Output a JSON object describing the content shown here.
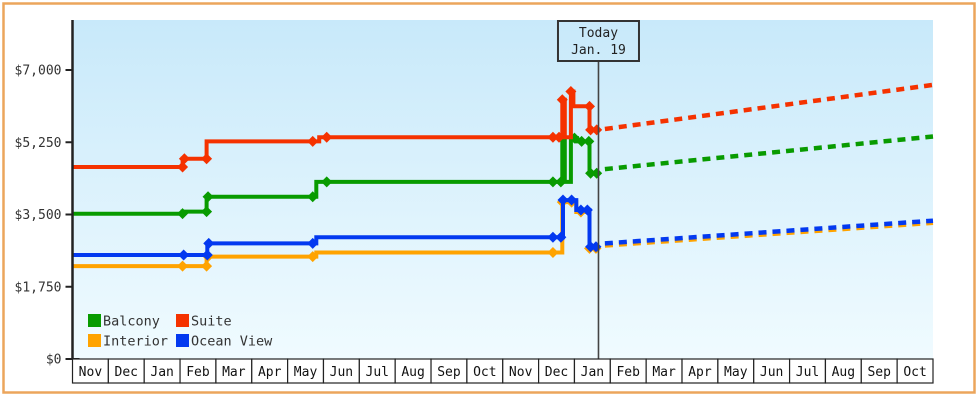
{
  "frame": {
    "border_color": "#eca55c",
    "background_color": "#ffffff"
  },
  "chart_data": {
    "type": "line",
    "title": "",
    "xlabel": "",
    "ylabel": "",
    "ylim": [
      0,
      7000
    ],
    "grid": false,
    "plot_background_top": "#c8e9fa",
    "plot_background_bottom": "#f0fbff",
    "axis_color": "#222222",
    "tick_label_color": "#333333",
    "y_ticks": [
      {
        "label": "$0",
        "value": 0
      },
      {
        "label": "$1,750",
        "value": 1750
      },
      {
        "label": "$3,500",
        "value": 3500
      },
      {
        "label": "$5,250",
        "value": 5250
      },
      {
        "label": "$7,000",
        "value": 7000
      }
    ],
    "x_months": [
      "Nov",
      "Dec",
      "Jan",
      "Feb",
      "Mar",
      "Apr",
      "May",
      "Jun",
      "Jul",
      "Aug",
      "Sep",
      "Oct",
      "Nov",
      "Dec",
      "Jan",
      "Feb",
      "Mar",
      "Apr",
      "May",
      "Jun",
      "Jul",
      "Aug",
      "Sep",
      "Oct"
    ],
    "today": {
      "label_line1": "Today",
      "label_line2": "Jan. 19",
      "month_pos": 14.67,
      "line_color": "#444444",
      "box_border_color": "#333333",
      "text_color": "#222222"
    },
    "legend_position": "bottom-left",
    "legend": [
      {
        "label": "Balcony",
        "color": "#089b00"
      },
      {
        "label": "Suite",
        "color": "#f53200"
      },
      {
        "label": "Interior",
        "color": "#ffa300"
      },
      {
        "label": "Ocean View",
        "color": "#0339f0"
      }
    ],
    "series": [
      {
        "name": "Interior",
        "color": "#ffa300",
        "line": [
          [
            0,
            2250
          ],
          [
            3.07,
            2250
          ],
          [
            3.74,
            2250
          ],
          [
            3.74,
            2480
          ],
          [
            6.7,
            2480
          ],
          [
            6.8,
            2480
          ],
          [
            6.8,
            2580
          ],
          [
            13.4,
            2580
          ],
          [
            13.66,
            2580
          ],
          [
            13.66,
            3800
          ],
          [
            14.05,
            3800
          ],
          [
            14.05,
            3560
          ],
          [
            14.42,
            3560
          ],
          [
            14.42,
            2680
          ],
          [
            14.67,
            2680
          ]
        ],
        "dots": [
          [
            3.07,
            2250
          ],
          [
            3.74,
            2250
          ],
          [
            3.78,
            2480
          ],
          [
            6.7,
            2480
          ],
          [
            13.4,
            2580
          ],
          [
            13.66,
            3800
          ],
          [
            13.92,
            3800
          ],
          [
            14.18,
            3560
          ],
          [
            14.42,
            2680
          ],
          [
            14.6,
            2680
          ]
        ],
        "forecast": [
          [
            14.85,
            2750
          ],
          [
            24,
            3300
          ]
        ]
      },
      {
        "name": "Ocean View",
        "color": "#0339f0",
        "line": [
          [
            0,
            2520
          ],
          [
            3.1,
            2520
          ],
          [
            3.76,
            2520
          ],
          [
            3.76,
            2800
          ],
          [
            6.7,
            2800
          ],
          [
            6.8,
            2800
          ],
          [
            6.8,
            2950
          ],
          [
            13.4,
            2950
          ],
          [
            13.68,
            2950
          ],
          [
            13.68,
            3850
          ],
          [
            14.05,
            3850
          ],
          [
            14.05,
            3610
          ],
          [
            14.42,
            3610
          ],
          [
            14.42,
            2720
          ],
          [
            14.67,
            2720
          ]
        ],
        "dots": [
          [
            3.1,
            2520
          ],
          [
            3.76,
            2520
          ],
          [
            3.8,
            2800
          ],
          [
            6.7,
            2800
          ],
          [
            13.4,
            2950
          ],
          [
            13.62,
            2950
          ],
          [
            13.68,
            3850
          ],
          [
            13.92,
            3850
          ],
          [
            14.18,
            3610
          ],
          [
            14.36,
            3610
          ],
          [
            14.45,
            2720
          ],
          [
            14.6,
            2720
          ]
        ],
        "forecast": [
          [
            14.85,
            2800
          ],
          [
            24,
            3350
          ]
        ]
      },
      {
        "name": "Balcony",
        "color": "#089b00",
        "line": [
          [
            0,
            3520
          ],
          [
            3.07,
            3520
          ],
          [
            3.07,
            3570
          ],
          [
            3.74,
            3570
          ],
          [
            3.74,
            3930
          ],
          [
            6.7,
            3930
          ],
          [
            6.8,
            3930
          ],
          [
            6.8,
            4290
          ],
          [
            13.4,
            4290
          ],
          [
            13.66,
            4290
          ],
          [
            13.66,
            5350
          ],
          [
            13.73,
            5350
          ],
          [
            13.73,
            4290
          ],
          [
            13.9,
            4290
          ],
          [
            13.9,
            5350
          ],
          [
            14.07,
            5350
          ],
          [
            14.07,
            5270
          ],
          [
            14.42,
            5270
          ],
          [
            14.42,
            4500
          ],
          [
            14.67,
            4500
          ]
        ],
        "dots": [
          [
            3.07,
            3520
          ],
          [
            3.74,
            3570
          ],
          [
            3.78,
            3930
          ],
          [
            6.7,
            3930
          ],
          [
            7.09,
            4290
          ],
          [
            13.4,
            4290
          ],
          [
            13.62,
            4290
          ],
          [
            13.66,
            5350
          ],
          [
            14.0,
            5350
          ],
          [
            14.2,
            5270
          ],
          [
            14.4,
            5270
          ],
          [
            14.45,
            4500
          ],
          [
            14.62,
            4500
          ]
        ],
        "forecast": [
          [
            14.85,
            4600
          ],
          [
            24,
            5390
          ]
        ]
      },
      {
        "name": "Suite",
        "color": "#f53200",
        "line": [
          [
            0,
            4650
          ],
          [
            3.07,
            4650
          ],
          [
            3.07,
            4850
          ],
          [
            3.74,
            4850
          ],
          [
            3.74,
            5270
          ],
          [
            6.7,
            5270
          ],
          [
            6.88,
            5270
          ],
          [
            6.88,
            5370
          ],
          [
            7.09,
            5370
          ],
          [
            13.4,
            5370
          ],
          [
            13.66,
            5370
          ],
          [
            13.66,
            6280
          ],
          [
            13.73,
            6280
          ],
          [
            13.73,
            5370
          ],
          [
            13.9,
            5370
          ],
          [
            13.9,
            6480
          ],
          [
            13.97,
            6480
          ],
          [
            13.97,
            6120
          ],
          [
            14.42,
            6120
          ],
          [
            14.42,
            5550
          ],
          [
            14.67,
            5550
          ]
        ],
        "dots": [
          [
            3.07,
            4650
          ],
          [
            3.12,
            4850
          ],
          [
            3.74,
            4850
          ],
          [
            6.7,
            5270
          ],
          [
            7.09,
            5370
          ],
          [
            13.4,
            5370
          ],
          [
            13.57,
            5370
          ],
          [
            13.66,
            6280
          ],
          [
            13.9,
            6480
          ],
          [
            14.42,
            6120
          ],
          [
            14.45,
            5550
          ],
          [
            14.62,
            5550
          ]
        ],
        "forecast": [
          [
            14.85,
            5570
          ],
          [
            24,
            6640
          ]
        ]
      }
    ]
  }
}
